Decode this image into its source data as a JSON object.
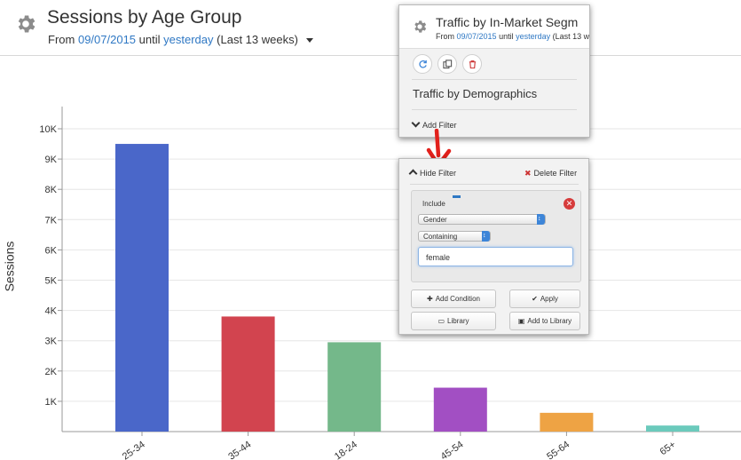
{
  "header": {
    "title": "Sessions by Age Group",
    "from_label": "From",
    "from_date": "09/07/2015",
    "until_label": "until",
    "until_date": "yesterday",
    "range_label": "(Last 13 weeks)"
  },
  "chart_data": {
    "type": "bar",
    "categories": [
      "25-34",
      "35-44",
      "18-24",
      "45-54",
      "55-64",
      "65+"
    ],
    "values": [
      9500,
      3800,
      2950,
      1450,
      620,
      200
    ],
    "colors": [
      "#4a67c9",
      "#d2444f",
      "#74b88a",
      "#a24fc3",
      "#eea344",
      "#6bcabc"
    ],
    "xlabel": "",
    "ylabel": "Sessions",
    "ylim": [
      0,
      10000
    ],
    "yticks": [
      {
        "v": 1000,
        "label": "1K"
      },
      {
        "v": 2000,
        "label": "2K"
      },
      {
        "v": 3000,
        "label": "3K"
      },
      {
        "v": 4000,
        "label": "4K"
      },
      {
        "v": 5000,
        "label": "5K"
      },
      {
        "v": 6000,
        "label": "6K"
      },
      {
        "v": 7000,
        "label": "7K"
      },
      {
        "v": 8000,
        "label": "8K"
      },
      {
        "v": 9000,
        "label": "9K"
      },
      {
        "v": 10000,
        "label": "10K"
      }
    ],
    "grid": true
  },
  "panel_top": {
    "title": "Traffic by In-Market Segm",
    "from_label": "From",
    "from_date": "09/07/2015",
    "until_label": "until",
    "until_date": "yesterday",
    "range_label": "(Last 13 w",
    "icons": [
      "refresh-icon",
      "copy-icon",
      "trash-icon"
    ],
    "section_label": "Traffic by Demographics",
    "add_filter_label": "Add Filter"
  },
  "panel_filter": {
    "hide_filter_label": "Hide Filter",
    "delete_filter_label": "Delete Filter",
    "include_label": "Include",
    "dimension_select": "Gender",
    "operator_select": "Containing",
    "value_input": "female",
    "add_condition_label": "Add Condition",
    "apply_label": "Apply",
    "library_label": "Library",
    "add_to_library_label": "Add to Library"
  }
}
